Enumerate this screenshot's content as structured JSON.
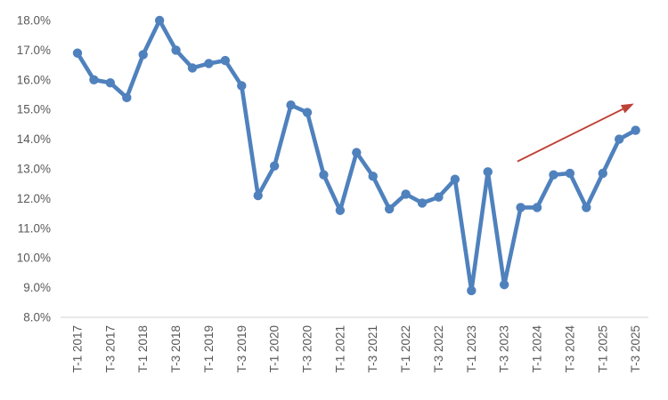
{
  "chart_data": {
    "type": "line",
    "title": "",
    "categories": [
      "T-1 2017",
      "T-2 2017",
      "T-3 2017",
      "T-4 2017",
      "T-1 2018",
      "T-2 2018",
      "T-3 2018",
      "T-4 2018",
      "T-1 2019",
      "T-2 2019",
      "T-3 2019",
      "T-4 2019",
      "T-1 2020",
      "T-2 2020",
      "T-3 2020",
      "T-4 2020",
      "T-1 2021",
      "T-2 2021",
      "T-3 2021",
      "T-4 2021",
      "T-1 2022",
      "T-2 2022",
      "T-3 2022",
      "T-4 2022",
      "T-1 2023",
      "T-2 2023",
      "T-3 2023",
      "T-4 2023",
      "T-1 2024",
      "T-2 2024",
      "T-3 2024",
      "T-4 2024",
      "T-1 2025",
      "T-2 2025",
      "T-3 2025"
    ],
    "x_label_every": 2,
    "series": [
      {
        "name": "rate-percent",
        "color": "#4f81bd",
        "values": [
          16.9,
          16.0,
          15.9,
          15.4,
          16.85,
          18.0,
          17.0,
          16.4,
          16.55,
          16.65,
          15.8,
          12.1,
          13.1,
          15.15,
          14.9,
          12.8,
          11.6,
          13.55,
          12.75,
          11.65,
          12.15,
          11.85,
          12.05,
          12.65,
          8.9,
          12.9,
          9.1,
          11.7,
          11.7,
          12.8,
          12.85,
          11.7,
          12.85,
          14.0,
          14.3
        ]
      }
    ],
    "ylim": [
      8,
      18
    ],
    "y_tick_step": 1,
    "y_tick_labels": [
      "8.0%",
      "9.0%",
      "10.0%",
      "11.0%",
      "12.0%",
      "13.0%",
      "14.0%",
      "15.0%",
      "16.0%",
      "17.0%",
      "18.0%"
    ],
    "grid": false,
    "legend": false,
    "axis_line_color": "#d9d9d9",
    "tick_label_color": "#595959",
    "annotations": [
      {
        "type": "arrow",
        "name": "upward-trend-arrow",
        "color": "#bf4238",
        "from": {
          "category_index": 26.8,
          "value": 13.25
        },
        "to": {
          "category_index": 33.9,
          "value": 15.2
        }
      }
    ]
  }
}
